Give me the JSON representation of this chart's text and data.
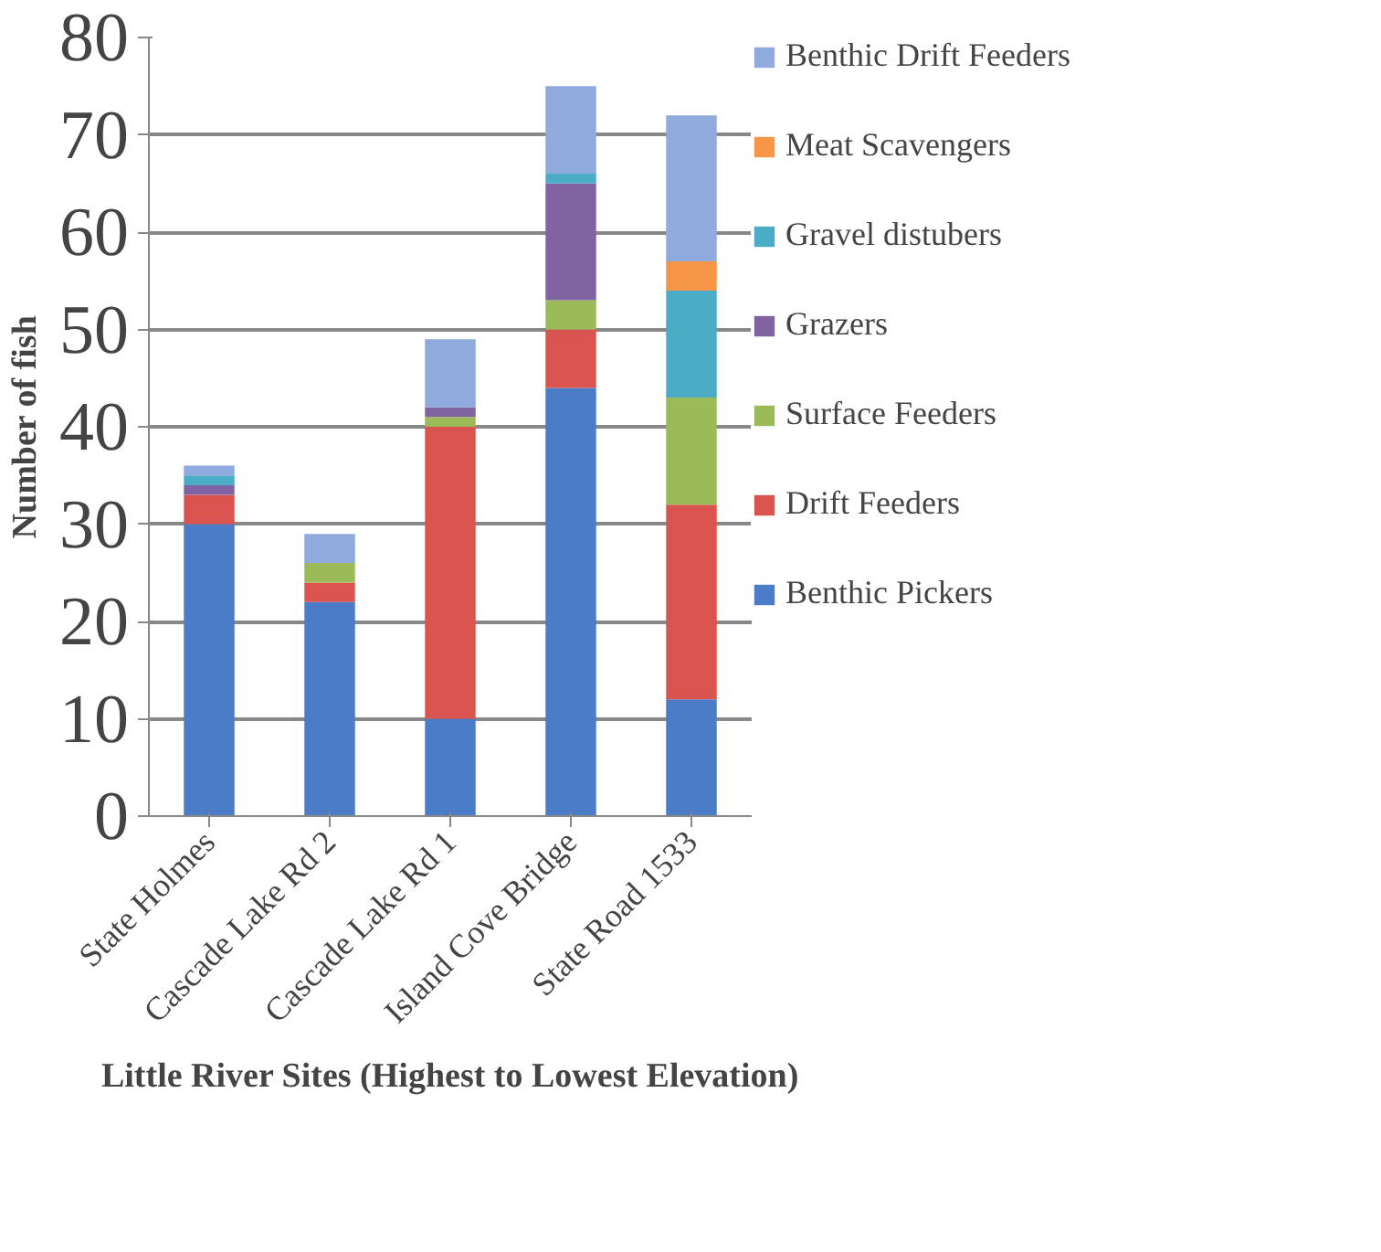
{
  "chart_data": {
    "type": "bar",
    "stacked": true,
    "xlabel": "Little River Sites (Highest to Lowest Elevation)",
    "ylabel": "Number of fish",
    "categories": [
      "State Holmes",
      "Cascade Lake Rd 2",
      "Cascade Lake Rd 1",
      "Island Cove Bridge",
      "State Road 1533"
    ],
    "series": [
      {
        "name": "Benthic Pickers",
        "color": "#4a7cc7",
        "values": [
          30,
          22,
          10,
          44,
          12
        ]
      },
      {
        "name": "Drift Feeders",
        "color": "#d9534f",
        "values": [
          3,
          2,
          30,
          6,
          20
        ]
      },
      {
        "name": "Surface Feeders",
        "color": "#9bbb59",
        "values": [
          0,
          2,
          1,
          3,
          11
        ]
      },
      {
        "name": "Grazers",
        "color": "#8064a2",
        "values": [
          1,
          0,
          1,
          12,
          0
        ]
      },
      {
        "name": "Gravel distubers",
        "color": "#4bacc6",
        "values": [
          1,
          0,
          0,
          1,
          11
        ]
      },
      {
        "name": "Meat Scavengers",
        "color": "#f79646",
        "values": [
          0,
          0,
          0,
          0,
          3
        ]
      },
      {
        "name": "Benthic Drift Feeders",
        "color": "#8faadc",
        "values": [
          1,
          3,
          7,
          9,
          15
        ]
      }
    ],
    "ylim": [
      0,
      80
    ],
    "yticks": [
      0,
      10,
      20,
      30,
      40,
      50,
      60,
      70,
      80
    ],
    "grid": "y",
    "legend": "right"
  }
}
